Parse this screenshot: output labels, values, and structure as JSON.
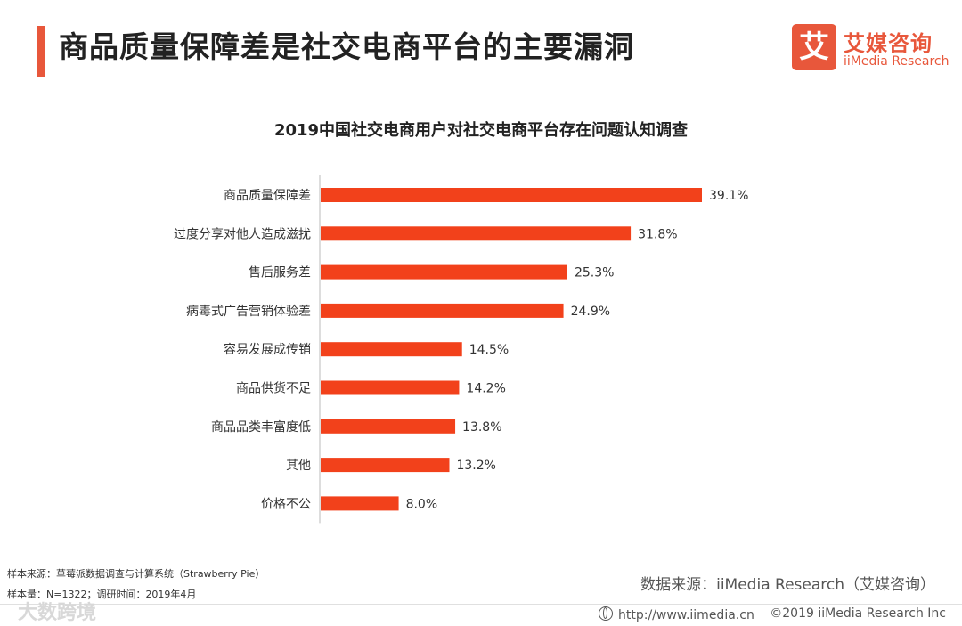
{
  "header": {
    "title": "商品质量保障差是社交电商平台的主要漏洞",
    "accent_color": "#e8573b"
  },
  "logo": {
    "mark": "艾",
    "name_cn": "艾媒咨询",
    "name_en": "iiMedia Research"
  },
  "chart_data": {
    "type": "bar",
    "orientation": "horizontal",
    "title": "2019中国社交电商用户对社交电商平台存在问题认知调查",
    "categories": [
      "商品质量保障差",
      "过度分享对他人造成滋扰",
      "售后服务差",
      "病毒式广告营销体验差",
      "容易发展成传销",
      "商品供货不足",
      "商品品类丰富度低",
      "其他",
      "价格不公"
    ],
    "values": [
      39.1,
      31.8,
      25.3,
      24.9,
      14.5,
      14.2,
      13.8,
      13.2,
      8.0
    ],
    "value_labels": [
      "39.1%",
      "31.8%",
      "25.3%",
      "24.9%",
      "14.5%",
      "14.2%",
      "13.8%",
      "13.2%",
      "8.0%"
    ],
    "unit": "%",
    "bar_color": "#f2411b",
    "xlim": [
      0,
      39.1
    ],
    "grid": false,
    "legend": "none"
  },
  "footer": {
    "sample_source": "样本来源：草莓派数据调查与计算系统（Strawberry Pie）",
    "sample_size": "样本量：N=1322；调研时间：2019年4月",
    "data_source": "数据来源：iiMedia Research（艾媒咨询）",
    "watermark": "大数跨境",
    "url": "http://www.iimedia.cn",
    "copyright": "©2019  iiMedia Research  Inc"
  }
}
